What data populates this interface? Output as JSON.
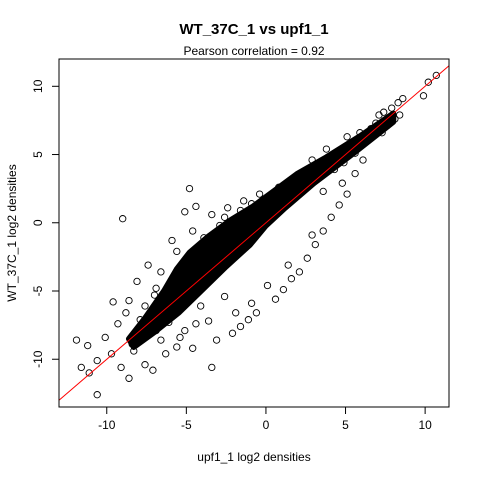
{
  "chart_data": {
    "type": "scatter",
    "title": "WT_37C_1 vs upf1_1",
    "subtitle": "Pearson correlation =  0.92",
    "xlabel": "upf1_1 log2 densities",
    "ylabel": "WT_37C_1 log2 densities",
    "xlim": [
      -13,
      11.5
    ],
    "ylim": [
      -13.5,
      12
    ],
    "xticks": [
      -10,
      -5,
      0,
      5,
      10
    ],
    "yticks": [
      -10,
      -5,
      0,
      5,
      10
    ],
    "grid": false,
    "legend": "none",
    "point_style": "open-circle",
    "point_color": "#000000",
    "fit_line": {
      "intercept": 0,
      "slope": 1,
      "color": "#ff0000"
    },
    "points": [
      [
        10.7,
        10.8
      ],
      [
        10.2,
        10.3
      ],
      [
        9.9,
        9.3
      ],
      [
        8.6,
        9.1
      ],
      [
        8.3,
        8.8
      ],
      [
        8.4,
        7.9
      ],
      [
        7.9,
        8.4
      ],
      [
        7.6,
        7.1
      ],
      [
        7.4,
        8.1
      ],
      [
        8.1,
        7.6
      ],
      [
        7.1,
        7.9
      ],
      [
        6.6,
        6.3
      ],
      [
        6.9,
        7.3
      ],
      [
        6.2,
        5.9
      ],
      [
        5.9,
        6.6
      ],
      [
        5.6,
        5.1
      ],
      [
        5.3,
        5.6
      ],
      [
        4.9,
        4.4
      ],
      [
        4.6,
        5.3
      ],
      [
        4.3,
        3.9
      ],
      [
        6.1,
        4.6
      ],
      [
        5.1,
        6.3
      ],
      [
        4.8,
        2.9
      ],
      [
        3.8,
        5.4
      ],
      [
        5.6,
        3.6
      ],
      [
        4.1,
        4.9
      ],
      [
        3.6,
        2.3
      ],
      [
        2.9,
        4.6
      ],
      [
        3.3,
        3.4
      ],
      [
        2.6,
        2.8
      ],
      [
        -4.8,
        2.5
      ],
      [
        -9.0,
        0.3
      ],
      [
        -4.4,
        1.2
      ],
      [
        -5.1,
        0.8
      ],
      [
        -2.6,
        0.4
      ],
      [
        -4.6,
        -0.6
      ],
      [
        -5.9,
        -1.3
      ],
      [
        -6.6,
        -3.6
      ],
      [
        -7.0,
        -5.3
      ],
      [
        -9.6,
        -5.8
      ],
      [
        -8.6,
        -5.7
      ],
      [
        -8.8,
        -6.6
      ],
      [
        -9.3,
        -7.4
      ],
      [
        -10.1,
        -8.4
      ],
      [
        -11.2,
        -9.0
      ],
      [
        -11.9,
        -8.6
      ],
      [
        -10.6,
        -10.1
      ],
      [
        -11.6,
        -10.6
      ],
      [
        -11.1,
        -11.0
      ],
      [
        -10.6,
        -12.6
      ],
      [
        -8.6,
        -11.4
      ],
      [
        -9.1,
        -10.6
      ],
      [
        -7.6,
        -10.4
      ],
      [
        -7.1,
        -10.8
      ],
      [
        -3.4,
        -10.6
      ],
      [
        -8.3,
        -9.4
      ],
      [
        -6.3,
        -9.6
      ],
      [
        -5.6,
        -9.1
      ],
      [
        -4.6,
        -9.2
      ],
      [
        -3.1,
        -8.6
      ],
      [
        -2.1,
        -8.1
      ],
      [
        -1.6,
        -7.6
      ],
      [
        -1.1,
        -7.1
      ],
      [
        -0.6,
        -6.6
      ],
      [
        -7.4,
        -3.1
      ],
      [
        -8.1,
        -4.3
      ],
      [
        -6.9,
        -4.8
      ],
      [
        -7.6,
        -6.1
      ],
      [
        -6.1,
        -7.3
      ],
      [
        -5.1,
        -7.9
      ],
      [
        -4.1,
        -6.1
      ],
      [
        -3.6,
        -7.2
      ],
      [
        0.6,
        -5.6
      ],
      [
        1.1,
        -4.9
      ],
      [
        1.6,
        -4.1
      ],
      [
        2.1,
        -3.6
      ],
      [
        2.6,
        -2.6
      ],
      [
        3.1,
        -1.6
      ],
      [
        3.6,
        -0.6
      ],
      [
        4.1,
        0.4
      ],
      [
        4.6,
        1.3
      ],
      [
        5.1,
        2.1
      ],
      [
        0.8,
        2.6
      ],
      [
        -0.4,
        2.1
      ],
      [
        -1.4,
        1.6
      ],
      [
        -2.4,
        1.1
      ],
      [
        -3.4,
        0.6
      ],
      [
        1.9,
        2.9
      ],
      [
        -0.9,
        1.4
      ],
      [
        -6.6,
        -8.6
      ],
      [
        -7.9,
        -7.1
      ],
      [
        -6.9,
        -7.9
      ],
      [
        -5.4,
        -8.4
      ],
      [
        -4.4,
        -7.4
      ],
      [
        -9.7,
        -9.6
      ],
      [
        -8.4,
        -8.9
      ],
      [
        -2.6,
        -5.4
      ],
      [
        -1.9,
        -6.6
      ],
      [
        -0.9,
        -5.9
      ],
      [
        0.1,
        -4.6
      ],
      [
        1.4,
        -3.1
      ],
      [
        2.9,
        -0.9
      ],
      [
        -3.9,
        -1.1
      ],
      [
        -5.6,
        -2.1
      ],
      [
        -2.9,
        -0.2
      ],
      [
        -1.6,
        0.9
      ],
      [
        6.6,
        6.9
      ],
      [
        7.3,
        6.6
      ]
    ]
  }
}
